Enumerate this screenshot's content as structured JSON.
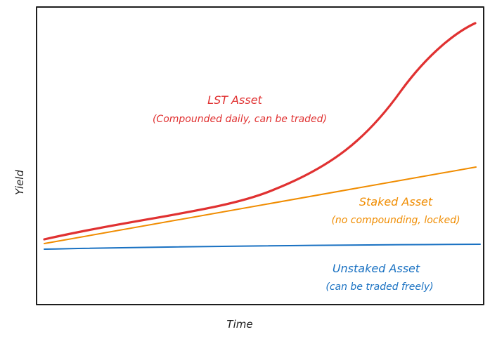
{
  "axes": {
    "x_label": "Time",
    "y_label": "Yield"
  },
  "colors": {
    "frame": "#1e1e1e",
    "lst": "#e03131",
    "staked": "#f08c00",
    "unstaked": "#1971c2"
  },
  "labels": {
    "lst": {
      "title": "LST Asset",
      "subtitle": "(Compounded daily, can be traded)"
    },
    "staked": {
      "title": "Staked Asset",
      "subtitle": "(no compounding, locked)"
    },
    "unstaked": {
      "title": "Unstaked Asset",
      "subtitle": "(can be traded freely)"
    }
  },
  "chart_data": {
    "type": "line",
    "series": [
      {
        "name": "LST Asset",
        "shape": "exponential",
        "color": "#e03131"
      },
      {
        "name": "Staked Asset",
        "shape": "linear",
        "color": "#f08c00"
      },
      {
        "name": "Unstaked Asset",
        "shape": "near-flat",
        "color": "#1971c2"
      }
    ],
    "xlabel": "Time",
    "ylabel": "Yield",
    "grid": false,
    "legend": "inline labels"
  }
}
